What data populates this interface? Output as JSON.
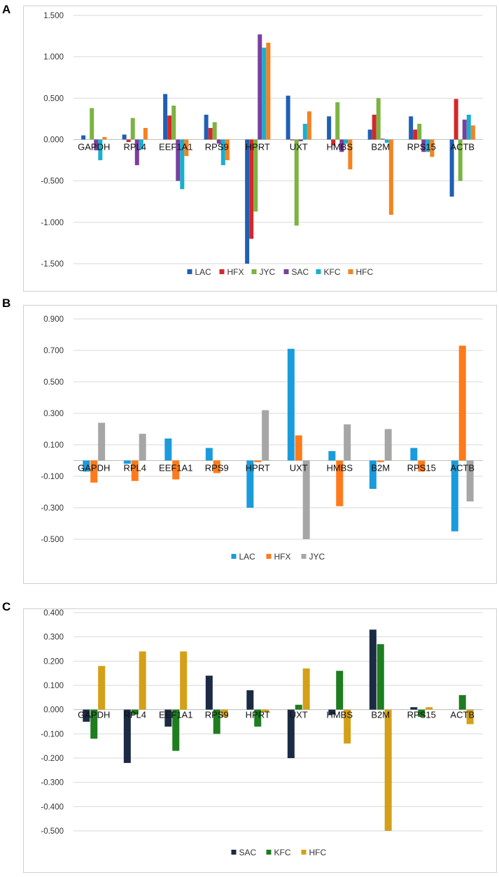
{
  "panels": [
    {
      "letter": "A"
    },
    {
      "letter": "B"
    },
    {
      "letter": "C"
    }
  ],
  "chart_data": [
    {
      "type": "bar",
      "title": "",
      "xlabel": "",
      "ylabel": "",
      "ylim": [
        -1.5,
        1.5
      ],
      "yticks": [
        1.5,
        1.0,
        0.5,
        0.0,
        -0.5,
        -1.0,
        -1.5
      ],
      "ytick_labels": [
        "1.500",
        "1.000",
        "0.500",
        "0.000",
        "-0.500",
        "-1.000",
        "-1.500"
      ],
      "categories": [
        "GAPDH",
        "RPL4",
        "EEF1A1",
        "RPS9",
        "HPRT",
        "UXT",
        "HMBS",
        "B2M",
        "RPS15",
        "ACTB"
      ],
      "legend_position": "bottom",
      "series": [
        {
          "name": "LAC",
          "color": "#1f5fb4",
          "values": [
            0.05,
            0.06,
            0.55,
            0.3,
            -1.5,
            0.53,
            0.28,
            0.12,
            0.28,
            -0.69
          ]
        },
        {
          "name": "HFX",
          "color": "#d62728",
          "values": [
            0.0,
            -0.03,
            0.29,
            0.14,
            -1.2,
            -0.01,
            -0.07,
            0.3,
            0.12,
            0.49
          ]
        },
        {
          "name": "JYC",
          "color": "#7cb342",
          "values": [
            0.38,
            0.26,
            0.41,
            0.21,
            -0.87,
            -1.04,
            0.45,
            0.5,
            0.19,
            -0.5
          ]
        },
        {
          "name": "SAC",
          "color": "#7b3f9e",
          "values": [
            -0.13,
            -0.31,
            -0.5,
            -0.05,
            1.27,
            -0.02,
            -0.15,
            0.01,
            -0.15,
            0.24
          ]
        },
        {
          "name": "KFC",
          "color": "#17b0cf",
          "values": [
            -0.25,
            -0.12,
            -0.6,
            -0.31,
            1.11,
            0.19,
            -0.05,
            -0.04,
            -0.15,
            0.3
          ]
        },
        {
          "name": "HFC",
          "color": "#f58220",
          "values": [
            0.03,
            0.14,
            -0.2,
            -0.25,
            1.17,
            0.34,
            -0.36,
            -0.91,
            -0.21,
            0.17
          ]
        }
      ]
    },
    {
      "type": "bar",
      "title": "",
      "xlabel": "",
      "ylabel": "",
      "ylim": [
        -0.5,
        0.9
      ],
      "yticks": [
        0.9,
        0.7,
        0.5,
        0.3,
        0.1,
        -0.1,
        -0.3,
        -0.5
      ],
      "ytick_labels": [
        "0.900",
        "0.700",
        "0.500",
        "0.300",
        "0.100",
        "-0.100",
        "-0.300",
        "-0.500"
      ],
      "categories": [
        "GAPDH",
        "RPL4",
        "EEF1A1",
        "RPS9",
        "HPRT",
        "UXT",
        "HMBS",
        "B2M",
        "RPS15",
        "ACTB"
      ],
      "legend_position": "bottom",
      "series": [
        {
          "name": "LAC",
          "color": "#1a9bdc",
          "values": [
            -0.07,
            -0.02,
            0.14,
            0.08,
            -0.3,
            0.71,
            0.06,
            -0.18,
            0.08,
            -0.45
          ]
        },
        {
          "name": "HFX",
          "color": "#ff7a1a",
          "values": [
            -0.14,
            -0.13,
            -0.12,
            -0.08,
            -0.01,
            0.16,
            -0.29,
            -0.01,
            -0.07,
            0.73
          ]
        },
        {
          "name": "JYC",
          "color": "#a6a6a6",
          "values": [
            0.24,
            0.17,
            0.0,
            0.0,
            0.32,
            -0.5,
            0.23,
            0.2,
            0.0,
            -0.26
          ]
        }
      ]
    },
    {
      "type": "bar",
      "title": "",
      "xlabel": "",
      "ylabel": "",
      "ylim": [
        -0.5,
        0.4
      ],
      "yticks": [
        0.4,
        0.3,
        0.2,
        0.1,
        0.0,
        -0.1,
        -0.2,
        -0.3,
        -0.4,
        -0.5
      ],
      "ytick_labels": [
        "0.400",
        "0.300",
        "0.200",
        "0.100",
        "0.000",
        "-0.100",
        "-0.200",
        "-0.300",
        "-0.400",
        "-0.500"
      ],
      "categories": [
        "GAPDH",
        "RPL4",
        "EEF1A1",
        "RPS9",
        "HPRT",
        "UXT",
        "HMBS",
        "B2M",
        "RPS15",
        "ACTB"
      ],
      "legend_position": "bottom",
      "series": [
        {
          "name": "SAC",
          "color": "#1c2b44",
          "values": [
            -0.05,
            -0.22,
            -0.07,
            0.14,
            0.08,
            -0.2,
            -0.02,
            0.33,
            0.01,
            0.0
          ]
        },
        {
          "name": "KFC",
          "color": "#1e7d1e",
          "values": [
            -0.12,
            -0.02,
            -0.17,
            -0.1,
            -0.07,
            0.02,
            0.16,
            0.27,
            -0.03,
            0.06
          ]
        },
        {
          "name": "HFC",
          "color": "#d4a017",
          "values": [
            0.18,
            0.24,
            0.24,
            -0.03,
            -0.01,
            0.17,
            -0.14,
            -0.5,
            0.01,
            -0.06
          ]
        }
      ]
    }
  ]
}
